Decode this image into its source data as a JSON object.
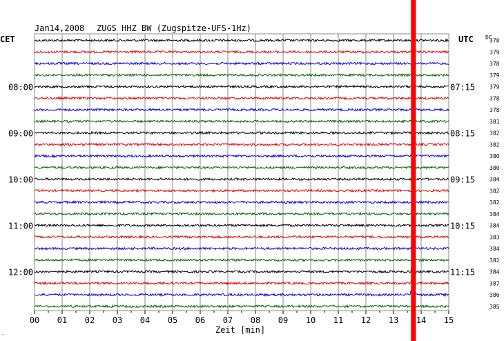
{
  "header": {
    "date": "Jan14,2008",
    "station": "ZUGS HHZ BW (Zugspitze-UFS-1Hz)",
    "left_zone": "CET",
    "right_zone": "UTC",
    "dc_label": "DC"
  },
  "chart_data": {
    "type": "line",
    "title": "Jan14,2008   ZUGS HHZ BW (Zugspitze-UFS-1Hz)",
    "xlabel": "Zeit [min]",
    "x_ticks": [
      "00",
      "01",
      "02",
      "03",
      "04",
      "05",
      "06",
      "07",
      "08",
      "09",
      "10",
      "11",
      "12",
      "13",
      "14",
      "15"
    ],
    "xlim": [
      0,
      15
    ],
    "grid": true,
    "trace_count": 24,
    "trace_colors": [
      "#000000",
      "#e80000",
      "#0000e8",
      "#006400"
    ],
    "left_time_labels": [
      {
        "trace": 4,
        "label": "08:00"
      },
      {
        "trace": 8,
        "label": "09:00"
      },
      {
        "trace": 12,
        "label": "10:00"
      },
      {
        "trace": 16,
        "label": "11:00"
      },
      {
        "trace": 20,
        "label": "12:00"
      }
    ],
    "right_time_labels": [
      {
        "trace": 4,
        "label": "07:15"
      },
      {
        "trace": 8,
        "label": "08:15"
      },
      {
        "trace": 12,
        "label": "09:15"
      },
      {
        "trace": 16,
        "label": "10:15"
      },
      {
        "trace": 20,
        "label": "11:15"
      }
    ],
    "dc_values": [
      378,
      379,
      378,
      379,
      379,
      378,
      378,
      381,
      382,
      382,
      380,
      380,
      384,
      382,
      382,
      384,
      384,
      383,
      384,
      382,
      384,
      387,
      386,
      385
    ],
    "event_marker": {
      "x_minute": 13.72,
      "color": "#ff0000"
    },
    "event_burst_traces": [
      20,
      21,
      22
    ]
  }
}
